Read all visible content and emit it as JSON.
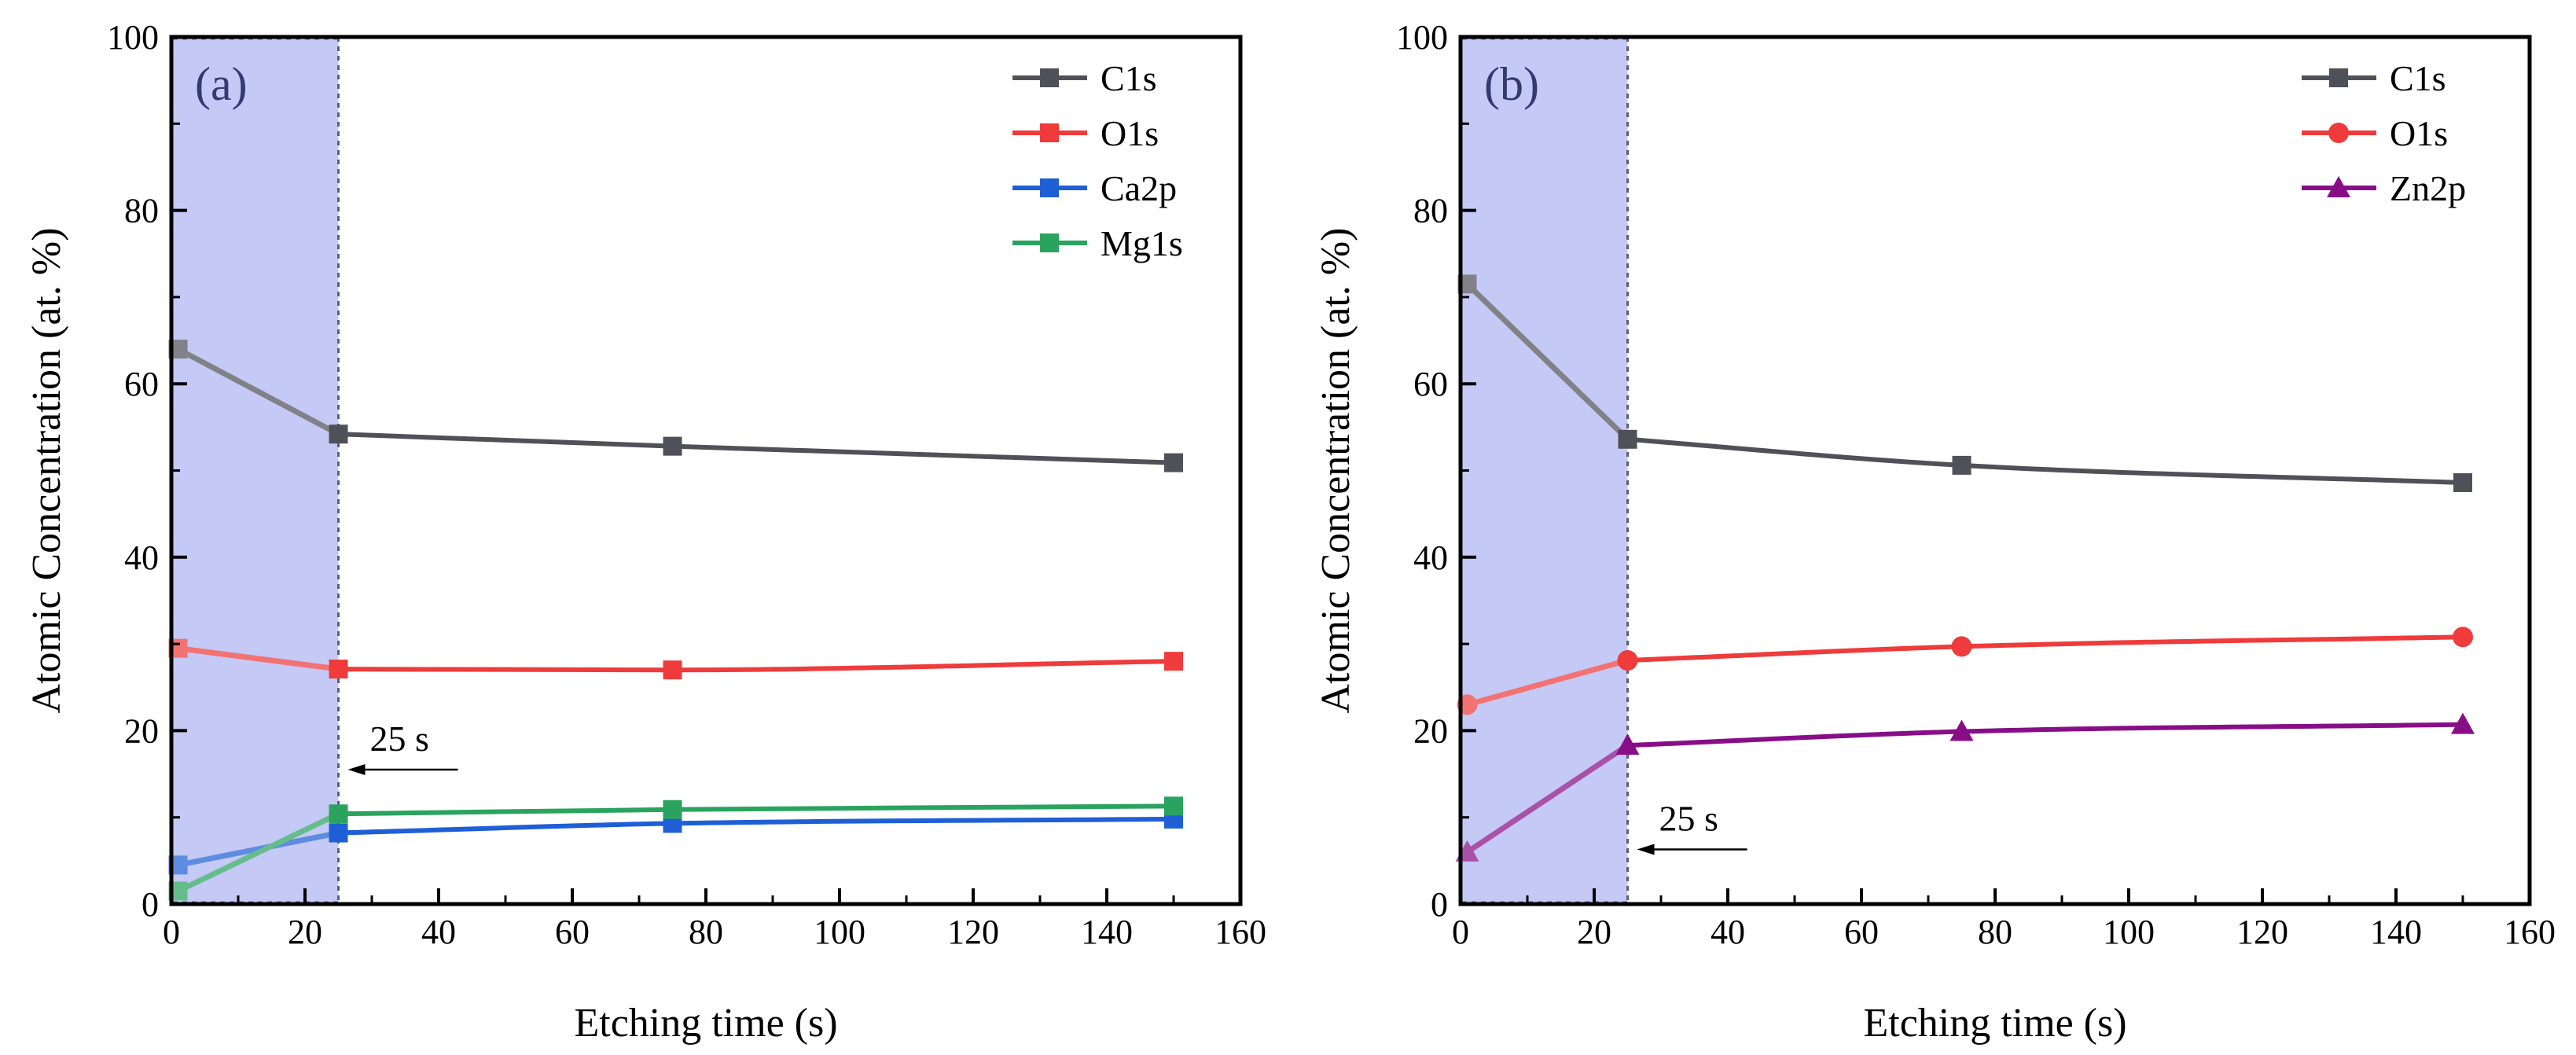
{
  "chart_data": [
    {
      "type": "line",
      "panel_label": "(a)",
      "xlabel": "Etching time (s)",
      "ylabel": "Atomic Concentration (at. %)",
      "xlim": [
        0,
        160
      ],
      "ylim": [
        0,
        100
      ],
      "xticks": [
        0,
        20,
        40,
        60,
        80,
        100,
        120,
        140,
        160
      ],
      "yticks": [
        0,
        20,
        40,
        60,
        80,
        100
      ],
      "x": [
        1,
        25,
        75,
        150
      ],
      "shaded_region": [
        0,
        25
      ],
      "legend_position": "top-right",
      "annotation": {
        "text": "25 s",
        "x": 25,
        "y": 15.5
      },
      "series": [
        {
          "name": "C1s",
          "values": [
            64,
            54.2,
            52.8,
            50.9
          ],
          "color": "#505058",
          "marker": "square"
        },
        {
          "name": "O1s",
          "values": [
            29.5,
            27.1,
            27.0,
            28.0
          ],
          "color": "#ef3b3b",
          "marker": "square"
        },
        {
          "name": "Ca2p",
          "values": [
            4.5,
            8.2,
            9.3,
            9.8
          ],
          "color": "#1f5fd6",
          "marker": "square"
        },
        {
          "name": "Mg1s",
          "values": [
            1.5,
            10.4,
            10.9,
            11.3
          ],
          "color": "#2aa35f",
          "marker": "square"
        }
      ]
    },
    {
      "type": "line",
      "panel_label": "(b)",
      "xlabel": "Etching time (s)",
      "ylabel": "Atomic Concentration (at. %)",
      "xlim": [
        0,
        160
      ],
      "ylim": [
        0,
        100
      ],
      "xticks": [
        0,
        20,
        40,
        60,
        80,
        100,
        120,
        140,
        160
      ],
      "yticks": [
        0,
        20,
        40,
        60,
        80,
        100
      ],
      "x": [
        1,
        25,
        75,
        150
      ],
      "shaded_region": [
        0,
        25
      ],
      "legend_position": "top-right",
      "annotation": {
        "text": "25 s",
        "x": 25,
        "y": 6.3
      },
      "series": [
        {
          "name": "C1s",
          "values": [
            71.5,
            53.6,
            50.6,
            48.6
          ],
          "color": "#505058",
          "marker": "square"
        },
        {
          "name": "O1s",
          "values": [
            23.0,
            28.1,
            29.7,
            30.8
          ],
          "color": "#ef3b3b",
          "marker": "circle"
        },
        {
          "name": "Zn2p",
          "values": [
            6.0,
            18.3,
            19.9,
            20.7
          ],
          "color": "#880e88",
          "marker": "triangle"
        }
      ]
    }
  ]
}
